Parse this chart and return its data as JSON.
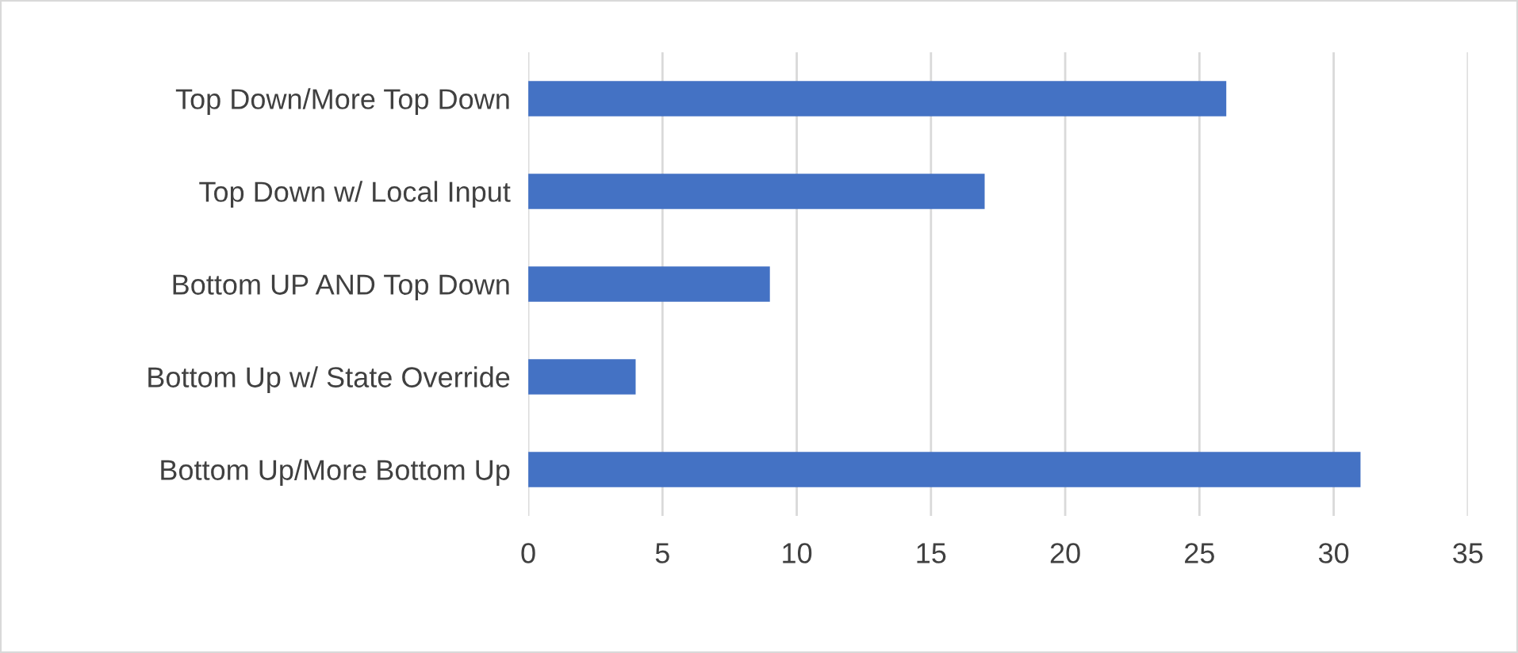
{
  "chart_data": {
    "type": "bar",
    "orientation": "horizontal",
    "categories": [
      "Top Down/More Top Down",
      "Top Down w/ Local Input",
      "Bottom UP AND Top Down",
      "Bottom Up w/ State Override",
      "Bottom Up/More Bottom Up"
    ],
    "values": [
      26,
      17,
      9,
      4,
      31
    ],
    "color": "#4472c4",
    "xlim": [
      0,
      35
    ],
    "xticks": [
      0,
      5,
      10,
      15,
      20,
      25,
      30,
      35
    ],
    "grid": "x"
  }
}
